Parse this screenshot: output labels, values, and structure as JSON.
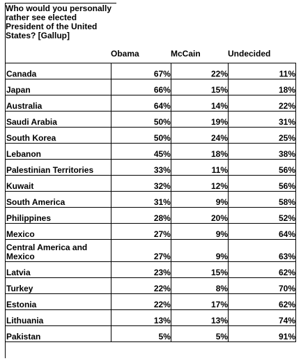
{
  "question": "Who would you personally rather see elected President of the United States? [Gallup]",
  "columns": [
    "Obama",
    "McCain",
    "Undecided"
  ],
  "rows": [
    {
      "country": "Canada",
      "obama": "67%",
      "mccain": "22%",
      "undecided": "11%"
    },
    {
      "country": "Japan",
      "obama": "66%",
      "mccain": "15%",
      "undecided": "18%"
    },
    {
      "country": "Australia",
      "obama": "64%",
      "mccain": "14%",
      "undecided": "22%"
    },
    {
      "country": "Saudi Arabia",
      "obama": "50%",
      "mccain": "19%",
      "undecided": "31%"
    },
    {
      "country": "South Korea",
      "obama": "50%",
      "mccain": "24%",
      "undecided": "25%"
    },
    {
      "country": "Lebanon",
      "obama": "45%",
      "mccain": "18%",
      "undecided": "38%"
    },
    {
      "country": "Palestinian Territories",
      "obama": "33%",
      "mccain": "11%",
      "undecided": "56%"
    },
    {
      "country": "Kuwait",
      "obama": "32%",
      "mccain": "12%",
      "undecided": "56%"
    },
    {
      "country": "South America",
      "obama": "31%",
      "mccain": "9%",
      "undecided": "58%"
    },
    {
      "country": "Philippines",
      "obama": "28%",
      "mccain": "20%",
      "undecided": "52%"
    },
    {
      "country": "Mexico",
      "obama": "27%",
      "mccain": "9%",
      "undecided": "64%"
    },
    {
      "country": "Central America and Mexico",
      "obama": "27%",
      "mccain": "9%",
      "undecided": "63%"
    },
    {
      "country": "Latvia",
      "obama": "23%",
      "mccain": "15%",
      "undecided": "62%"
    },
    {
      "country": "Turkey",
      "obama": "22%",
      "mccain": "8%",
      "undecided": "70%"
    },
    {
      "country": "Estonia",
      "obama": "22%",
      "mccain": "17%",
      "undecided": "62%"
    },
    {
      "country": "Lithuania",
      "obama": "13%",
      "mccain": "13%",
      "undecided": "74%"
    },
    {
      "country": "Pakistan",
      "obama": "5%",
      "mccain": "5%",
      "undecided": "91%"
    }
  ]
}
